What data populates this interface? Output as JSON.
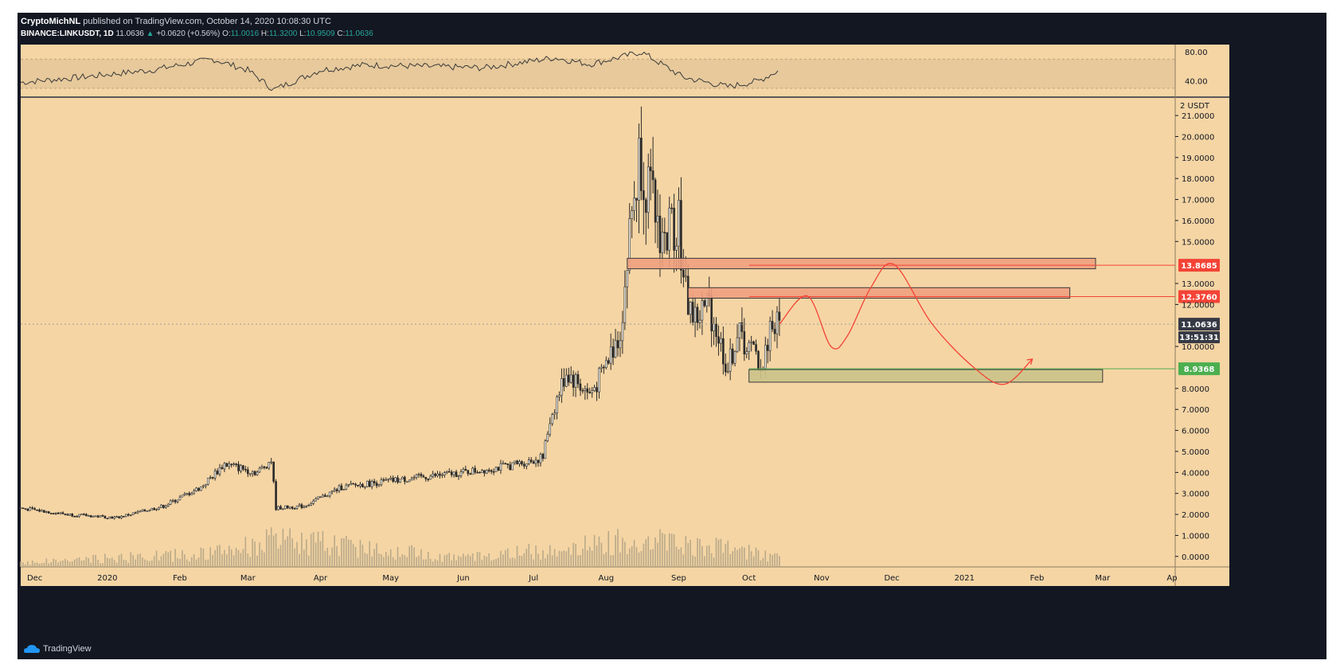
{
  "header": {
    "publisher": "CryptoMichNL",
    "published_text": "published on TradingView.com, October 14, 2020 10:08:30 UTC",
    "symbol": "BINANCE:LINKUSDT, 1D",
    "last": "11.0636",
    "change_arrow": "▲",
    "change": "+0.0620 (+0.56%)",
    "open_label": "O:",
    "open": "11.0016",
    "high_label": "H:",
    "high": "11.3200",
    "low_label": "L:",
    "low": "10.9509",
    "close_label": "C:",
    "close": "11.0636"
  },
  "footer": {
    "brand": "TradingView",
    "logo_icon": "tradingview-cloud-icon"
  },
  "colors": {
    "background": "#f5d5a4",
    "rsi_band": "#e7c99b",
    "resistance_zone": "#f0a080",
    "support_zone": "#cbc389",
    "projection": "#f44336",
    "candle": "#2a2a2a",
    "volume": "#b9a98a"
  },
  "chart_data": {
    "type": "candlestick",
    "price_unit": "2 USDT",
    "y_ticks": [
      "21.0000",
      "20.0000",
      "19.0000",
      "18.0000",
      "17.0000",
      "16.0000",
      "15.0000",
      "13.0000",
      "12.0000",
      "10.0000",
      "8.0000",
      "7.0000",
      "6.0000",
      "5.0000",
      "4.0000",
      "3.0000",
      "2.0000",
      "1.0000",
      "0.0000"
    ],
    "x_ticks": [
      "Dec",
      "2020",
      "Feb",
      "Mar",
      "Apr",
      "May",
      "Jun",
      "Jul",
      "Aug",
      "Sep",
      "Oct",
      "Nov",
      "Dec",
      "2021",
      "Feb",
      "Mar",
      "Ap"
    ],
    "ylim": [
      -0.5,
      21.8
    ],
    "price_path": [
      [
        "2019-11-25",
        2.3
      ],
      [
        "2019-12-15",
        2.0
      ],
      [
        "2020-01-05",
        1.85
      ],
      [
        "2020-01-25",
        2.4
      ],
      [
        "2020-02-10",
        3.3
      ],
      [
        "2020-02-20",
        4.4
      ],
      [
        "2020-03-05",
        4.0
      ],
      [
        "2020-03-11",
        4.6
      ],
      [
        "2020-03-13",
        2.3
      ],
      [
        "2020-03-25",
        2.4
      ],
      [
        "2020-04-10",
        3.3
      ],
      [
        "2020-05-01",
        3.6
      ],
      [
        "2020-06-01",
        4.0
      ],
      [
        "2020-06-20",
        4.3
      ],
      [
        "2020-07-05",
        4.7
      ],
      [
        "2020-07-08",
        6.5
      ],
      [
        "2020-07-15",
        8.8
      ],
      [
        "2020-07-25",
        7.7
      ],
      [
        "2020-07-30",
        8.6
      ],
      [
        "2020-08-07",
        10.8
      ],
      [
        "2020-08-10",
        13.9
      ],
      [
        "2020-08-12",
        16.5
      ],
      [
        "2020-08-16",
        19.5
      ],
      [
        "2020-08-20",
        16.8
      ],
      [
        "2020-08-26",
        15.0
      ],
      [
        "2020-09-01",
        16.5
      ],
      [
        "2020-09-03",
        12.8
      ],
      [
        "2020-09-08",
        11.3
      ],
      [
        "2020-09-14",
        12.0
      ],
      [
        "2020-09-22",
        8.9
      ],
      [
        "2020-09-26",
        10.6
      ],
      [
        "2020-10-04",
        9.5
      ],
      [
        "2020-10-07",
        9.0
      ],
      [
        "2020-10-10",
        11.0
      ],
      [
        "2020-10-14",
        11.06
      ]
    ],
    "rsi": {
      "ticks": [
        "80.00",
        "40.00"
      ],
      "band": [
        30,
        70
      ],
      "ylim": [
        20,
        90
      ],
      "values": [
        [
          "2019-11-25",
          38
        ],
        [
          "2019-12-20",
          45
        ],
        [
          "2020-01-20",
          55
        ],
        [
          "2020-02-15",
          70
        ],
        [
          "2020-03-01",
          55
        ],
        [
          "2020-03-12",
          28
        ],
        [
          "2020-04-01",
          55
        ],
        [
          "2020-04-20",
          62
        ],
        [
          "2020-06-10",
          58
        ],
        [
          "2020-07-10",
          72
        ],
        [
          "2020-07-25",
          63
        ],
        [
          "2020-08-10",
          75
        ],
        [
          "2020-08-16",
          80
        ],
        [
          "2020-09-03",
          45
        ],
        [
          "2020-09-22",
          32
        ],
        [
          "2020-10-05",
          40
        ],
        [
          "2020-10-14",
          55
        ]
      ]
    },
    "volume": {
      "ylim": [
        0,
        1
      ],
      "level": [
        [
          "2019-11-25",
          0.1
        ],
        [
          "2020-02-15",
          0.3
        ],
        [
          "2020-03-13",
          0.6
        ],
        [
          "2020-04-10",
          0.5
        ],
        [
          "2020-06-01",
          0.2
        ],
        [
          "2020-07-20",
          0.45
        ],
        [
          "2020-08-16",
          0.65
        ],
        [
          "2020-09-22",
          0.4
        ],
        [
          "2020-10-14",
          0.2
        ]
      ]
    },
    "zones": [
      {
        "kind": "resistance",
        "low": 13.7,
        "high": 14.2,
        "start": "2020-08-10",
        "end": "2021-02-26"
      },
      {
        "kind": "resistance",
        "low": 12.3,
        "high": 12.8,
        "start": "2020-09-05",
        "end": "2021-02-15"
      },
      {
        "kind": "support",
        "low": 8.3,
        "high": 8.9,
        "start": "2020-10-01",
        "end": "2021-03-01"
      }
    ],
    "levels": [
      {
        "value": 13.8685,
        "label": "13.8685",
        "color": "#f44336"
      },
      {
        "value": 12.376,
        "label": "12.3760",
        "color": "#f44336"
      },
      {
        "value": 11.0636,
        "label": "11.0636",
        "color": "#363a45",
        "countdown": "13:51:31"
      },
      {
        "value": 8.9368,
        "label": "8.9368",
        "color": "#4caf50"
      }
    ],
    "projection": [
      [
        "2020-10-14",
        11.06
      ],
      [
        "2020-10-26",
        12.4
      ],
      [
        "2020-11-05",
        10.0
      ],
      [
        "2020-11-12",
        10.5
      ],
      [
        "2020-11-22",
        12.8
      ],
      [
        "2020-12-02",
        13.9
      ],
      [
        "2020-12-18",
        11.1
      ],
      [
        "2021-01-05",
        9.0
      ],
      [
        "2021-01-18",
        8.2
      ],
      [
        "2021-01-30",
        9.4
      ]
    ]
  }
}
